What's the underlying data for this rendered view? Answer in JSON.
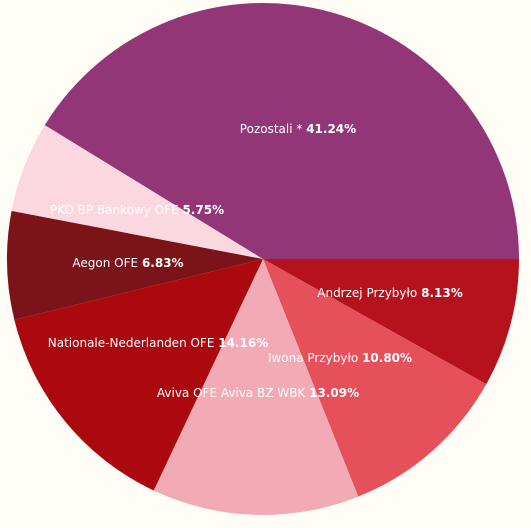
{
  "chart_data": {
    "type": "pie",
    "title": "",
    "start_angle_deg": 0,
    "direction": "clockwise",
    "slices": [
      {
        "name": "Andrzej Przybyło",
        "value": 8.13,
        "label": "8.13%",
        "color": "#b5121d"
      },
      {
        "name": "Iwona Przybyło",
        "value": 10.8,
        "label": "10.80%",
        "color": "#e5505a"
      },
      {
        "name": "Aviva OFE Aviva BZ WBK",
        "value": 13.09,
        "label": "13.09%",
        "color": "#f2aab4"
      },
      {
        "name": "Nationale-Nederlanden OFE",
        "value": 14.16,
        "label": "14.16%",
        "color": "#ac0810"
      },
      {
        "name": "Aegon OFE",
        "value": 6.83,
        "label": "6.83%",
        "color": "#7b1418"
      },
      {
        "name": "PKO BP Bankowy OFE",
        "value": 5.75,
        "label": "5.75%",
        "color": "#fbd8e0"
      },
      {
        "name": "Pozostali *",
        "value": 41.24,
        "label": "41.24%",
        "color": "#933677"
      }
    ]
  }
}
